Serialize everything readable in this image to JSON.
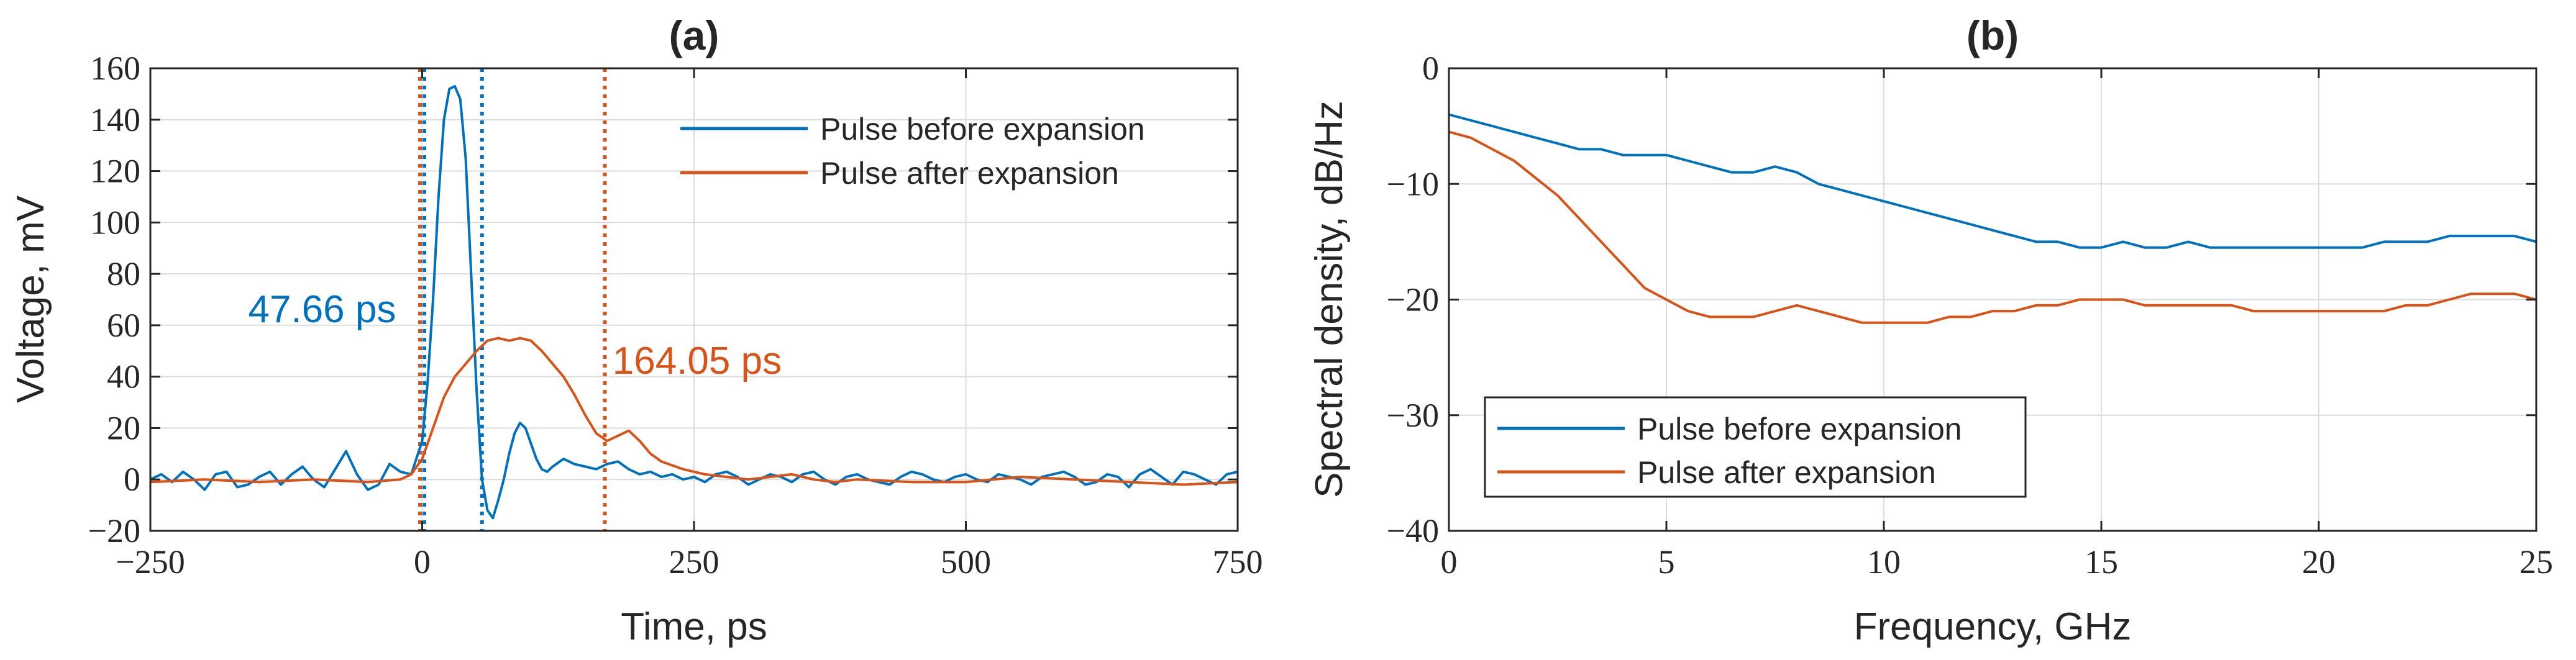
{
  "colors": {
    "blue": "#0072BD",
    "orange": "#D95319",
    "grid": "#dcdcdc",
    "axis": "#262626"
  },
  "chart_data": [
    {
      "id": "a",
      "type": "line",
      "title": "(a)",
      "xlabel": "Time, ps",
      "ylabel": "Voltage, mV",
      "xlim": [
        -250,
        750
      ],
      "ylim": [
        -20,
        160
      ],
      "xticks": [
        -250,
        0,
        250,
        500,
        750
      ],
      "xtick_labels": [
        "−250",
        "0",
        "250",
        "500",
        "750"
      ],
      "yticks": [
        -20,
        0,
        20,
        40,
        60,
        80,
        100,
        120,
        140,
        160
      ],
      "ytick_labels": [
        "−20",
        "0",
        "20",
        "40",
        "60",
        "80",
        "100",
        "120",
        "140",
        "160"
      ],
      "grid": true,
      "legend_position": "top-right",
      "series": [
        {
          "name": "Pulse before expansion",
          "color": "#0072BD",
          "x": [
            -250,
            -240,
            -230,
            -220,
            -210,
            -200,
            -190,
            -180,
            -170,
            -160,
            -150,
            -140,
            -130,
            -120,
            -110,
            -100,
            -90,
            -80,
            -70,
            -60,
            -50,
            -40,
            -30,
            -20,
            -10,
            0,
            5,
            10,
            15,
            20,
            25,
            30,
            35,
            40,
            45,
            50,
            55,
            60,
            65,
            70,
            75,
            80,
            85,
            90,
            95,
            100,
            105,
            110,
            115,
            120,
            130,
            140,
            150,
            160,
            170,
            180,
            190,
            200,
            210,
            220,
            230,
            240,
            250,
            260,
            270,
            280,
            290,
            300,
            310,
            320,
            330,
            340,
            350,
            360,
            370,
            380,
            390,
            400,
            410,
            420,
            430,
            440,
            450,
            460,
            470,
            480,
            490,
            500,
            510,
            520,
            530,
            540,
            550,
            560,
            570,
            580,
            590,
            600,
            610,
            620,
            630,
            640,
            650,
            660,
            670,
            680,
            690,
            700,
            710,
            720,
            730,
            740,
            750
          ],
          "y": [
            0,
            2,
            -1,
            3,
            0,
            -4,
            2,
            3,
            -3,
            -2,
            1,
            3,
            -2,
            2,
            5,
            0,
            -3,
            4,
            11,
            2,
            -4,
            -2,
            6,
            3,
            2,
            15,
            38,
            70,
            110,
            140,
            152,
            153,
            148,
            125,
            80,
            35,
            0,
            -12,
            -15,
            -8,
            0,
            10,
            18,
            22,
            20,
            14,
            8,
            4,
            3,
            5,
            8,
            6,
            5,
            4,
            6,
            7,
            4,
            2,
            3,
            1,
            2,
            0,
            1,
            -1,
            2,
            3,
            1,
            -2,
            0,
            2,
            1,
            -1,
            2,
            3,
            0,
            -2,
            1,
            2,
            0,
            -1,
            -2,
            1,
            3,
            2,
            0,
            -1,
            1,
            2,
            0,
            -1,
            2,
            1,
            0,
            -2,
            1,
            2,
            3,
            1,
            -2,
            -1,
            2,
            1,
            -3,
            2,
            4,
            1,
            -2,
            3,
            2,
            0,
            -2,
            2,
            3
          ]
        },
        {
          "name": "Pulse after expansion",
          "color": "#D95319",
          "x": [
            -250,
            -200,
            -150,
            -100,
            -50,
            -20,
            -10,
            0,
            10,
            20,
            30,
            40,
            50,
            60,
            70,
            80,
            90,
            100,
            110,
            120,
            130,
            140,
            150,
            160,
            170,
            180,
            190,
            200,
            210,
            220,
            240,
            260,
            280,
            300,
            320,
            340,
            360,
            380,
            400,
            450,
            500,
            550,
            600,
            650,
            700,
            750
          ],
          "y": [
            -1,
            0,
            -1,
            0,
            -1,
            0,
            2,
            8,
            20,
            32,
            40,
            45,
            50,
            54,
            55,
            54,
            55,
            54,
            50,
            45,
            40,
            33,
            25,
            18,
            15,
            17,
            19,
            15,
            10,
            7,
            4,
            2,
            1,
            0,
            1,
            2,
            0,
            -1,
            0,
            -1,
            -1,
            1,
            0,
            -1,
            -2,
            -1
          ]
        }
      ],
      "markers": [
        {
          "x": 2,
          "color": "#0072BD",
          "style": "dotted"
        },
        {
          "x": 55,
          "color": "#0072BD",
          "style": "dotted"
        },
        {
          "x": -2,
          "color": "#D95319",
          "style": "dotted"
        },
        {
          "x": 168,
          "color": "#D95319",
          "style": "dotted"
        }
      ],
      "annotations": [
        {
          "text": "47.66 ps",
          "x": -160,
          "y": 66,
          "color": "#0072BD"
        },
        {
          "text": "164.05 ps",
          "x": 175,
          "y": 46,
          "color": "#D95319"
        }
      ]
    },
    {
      "id": "b",
      "type": "line",
      "title": "(b)",
      "xlabel": "Frequency, GHz",
      "ylabel": "Spectral density, dB/Hz",
      "xlim": [
        0,
        25
      ],
      "ylim": [
        -40,
        0
      ],
      "xticks": [
        0,
        5,
        10,
        15,
        20,
        25
      ],
      "xtick_labels": [
        "0",
        "5",
        "10",
        "15",
        "20",
        "25"
      ],
      "yticks": [
        -40,
        -30,
        -20,
        -10,
        0
      ],
      "ytick_labels": [
        "−40",
        "−30",
        "−20",
        "−10",
        "0"
      ],
      "grid": true,
      "legend_position": "bottom-left",
      "series": [
        {
          "name": "Pulse before expansion",
          "color": "#0072BD",
          "x": [
            0,
            0.5,
            1,
            1.5,
            2,
            2.5,
            3,
            3.5,
            4,
            4.5,
            5,
            5.5,
            6,
            6.5,
            7,
            7.5,
            8,
            8.5,
            9,
            9.5,
            10,
            10.5,
            11,
            11.5,
            12,
            12.5,
            13,
            13.5,
            14,
            14.5,
            15,
            15.5,
            16,
            16.5,
            17,
            17.5,
            18,
            18.5,
            19,
            19.5,
            20,
            20.5,
            21,
            21.5,
            22,
            22.5,
            23,
            23.5,
            24,
            24.5,
            25
          ],
          "y": [
            -4,
            -4.5,
            -5,
            -5.5,
            -6,
            -6.5,
            -7,
            -7,
            -7.5,
            -7.5,
            -7.5,
            -8,
            -8.5,
            -9,
            -9,
            -8.5,
            -9,
            -10,
            -10.5,
            -11,
            -11.5,
            -12,
            -12.5,
            -13,
            -13.5,
            -14,
            -14.5,
            -15,
            -15,
            -15.5,
            -15.5,
            -15,
            -15.5,
            -15.5,
            -15,
            -15.5,
            -15.5,
            -15.5,
            -15.5,
            -15.5,
            -15.5,
            -15.5,
            -15.5,
            -15,
            -15,
            -15,
            -14.5,
            -14.5,
            -14.5,
            -14.5,
            -15
          ]
        },
        {
          "name": "Pulse after expansion",
          "color": "#D95319",
          "x": [
            0,
            0.5,
            1,
            1.5,
            2,
            2.5,
            3,
            3.5,
            4,
            4.5,
            5,
            5.5,
            6,
            6.5,
            7,
            7.5,
            8,
            8.5,
            9,
            9.5,
            10,
            10.5,
            11,
            11.5,
            12,
            12.5,
            13,
            13.5,
            14,
            14.5,
            15,
            15.5,
            16,
            16.5,
            17,
            17.5,
            18,
            18.5,
            19,
            19.5,
            20,
            20.5,
            21,
            21.5,
            22,
            22.5,
            23,
            23.5,
            24,
            24.5,
            25
          ],
          "y": [
            -5.5,
            -6,
            -7,
            -8,
            -9.5,
            -11,
            -13,
            -15,
            -17,
            -19,
            -20,
            -21,
            -21.5,
            -21.5,
            -21.5,
            -21,
            -20.5,
            -21,
            -21.5,
            -22,
            -22,
            -22,
            -22,
            -21.5,
            -21.5,
            -21,
            -21,
            -20.5,
            -20.5,
            -20,
            -20,
            -20,
            -20.5,
            -20.5,
            -20.5,
            -20.5,
            -20.5,
            -21,
            -21,
            -21,
            -21,
            -21,
            -21,
            -21,
            -20.5,
            -20.5,
            -20,
            -19.5,
            -19.5,
            -19.5,
            -20
          ]
        }
      ]
    }
  ]
}
